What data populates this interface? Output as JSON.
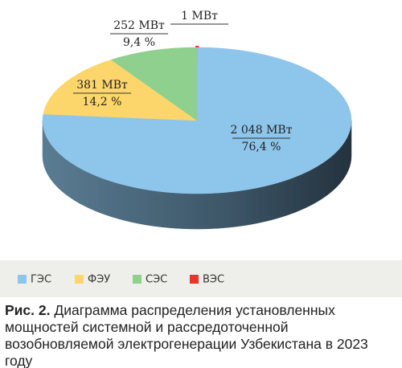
{
  "chart_data": {
    "type": "pie3d",
    "categories": [
      "ГЭС",
      "ФЭУ",
      "СЭС",
      "ВЭС"
    ],
    "values": [
      2048,
      381,
      252,
      1
    ],
    "value_labels": [
      "2 048 МВт",
      "381 МВт",
      "252 МВт",
      "1 МВт"
    ],
    "percents": [
      76.4,
      14.2,
      9.4,
      null
    ],
    "percent_labels": [
      "76,4 %",
      "14,2 %",
      "9,4 %",
      null
    ],
    "colors": [
      "#8ec5ea",
      "#fdd66b",
      "#90d08e",
      "#e8352b"
    ],
    "caption": {
      "label": "Рис. 2.",
      "text": "Диаграмма распределения установленных мощностей системной и рассредоточенной возобновляемой электрогенерации Узбекистана в 2023 году"
    }
  }
}
